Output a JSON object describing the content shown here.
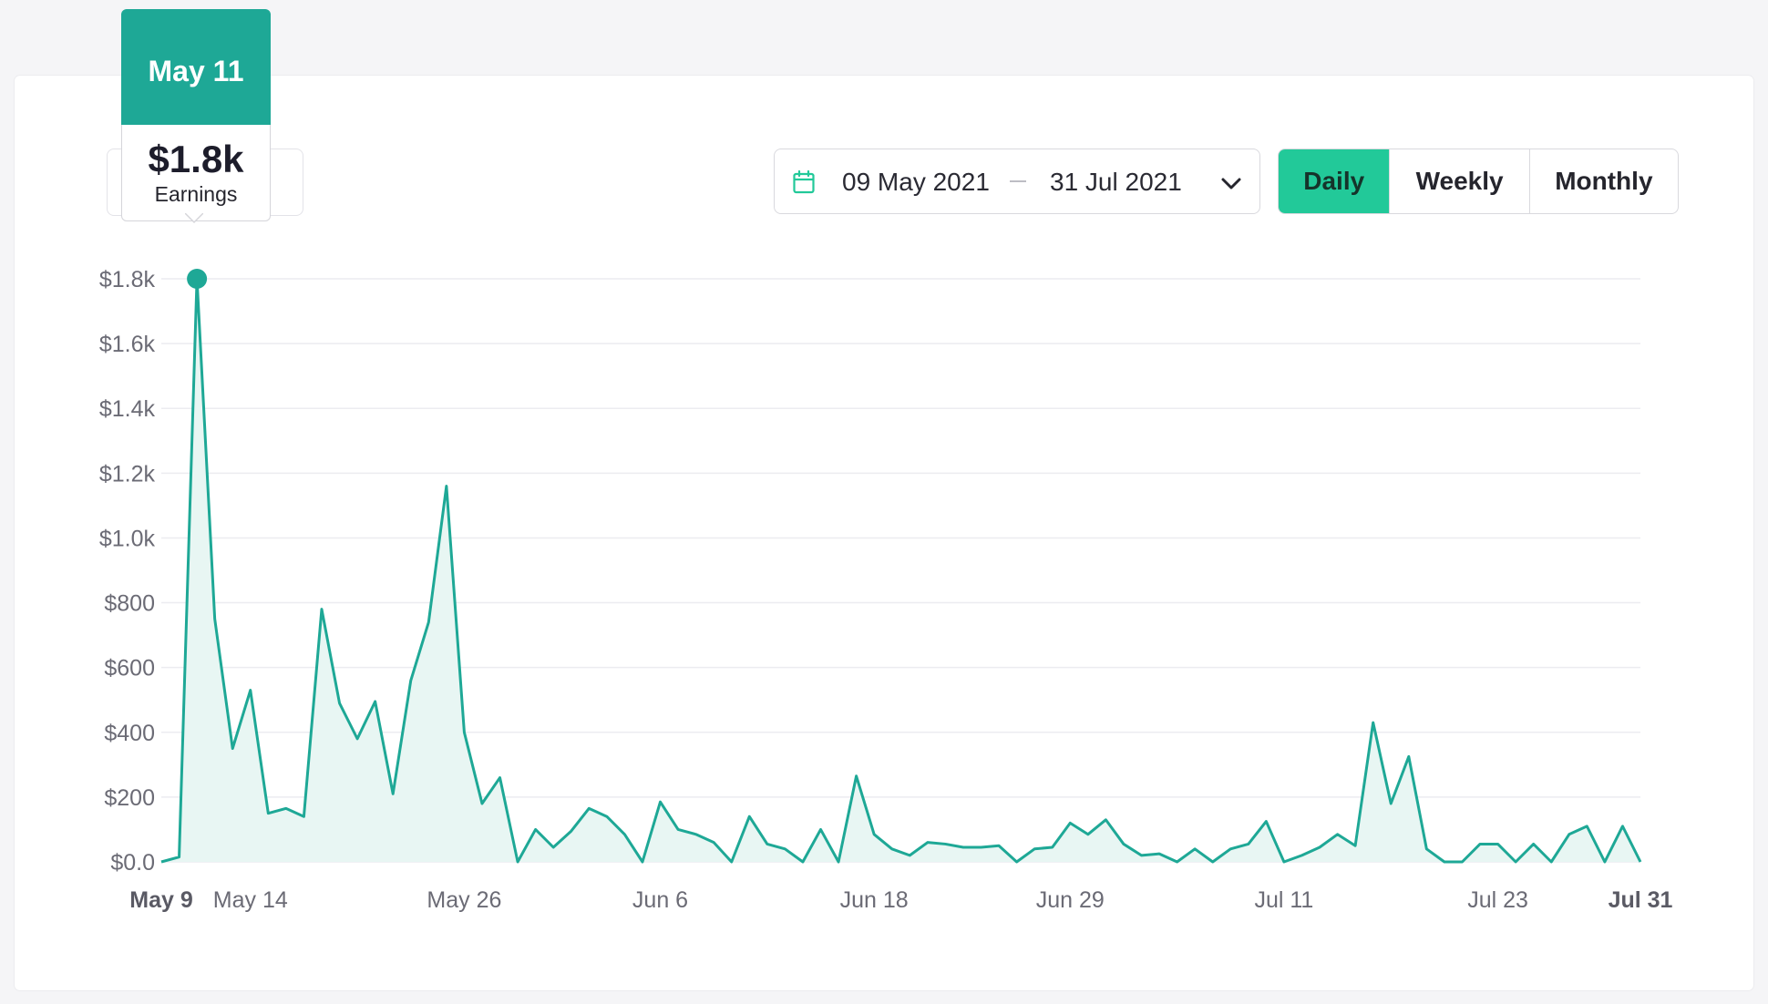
{
  "date_range": {
    "start": "09 May 2021",
    "end": "31 Jul 2021",
    "calendar_icon": "calendar-icon",
    "dropdown_icon": "chevron-down-icon"
  },
  "granularity": {
    "options": [
      "Daily",
      "Weekly",
      "Monthly"
    ],
    "selected": "Daily"
  },
  "tooltip": {
    "date": "May 11",
    "value": "$1.8k",
    "label": "Earnings"
  },
  "colors": {
    "accent": "#22c999",
    "line": "#1ea896",
    "area_fill": "#e8f6f3",
    "grid": "#ececf0",
    "tick": "#6b6b75"
  },
  "chart_data": {
    "type": "area",
    "xlabel": "",
    "ylabel": "",
    "ylim": [
      0,
      1800
    ],
    "yticks": [
      {
        "value": 0,
        "label": "$0.0"
      },
      {
        "value": 200,
        "label": "$200"
      },
      {
        "value": 400,
        "label": "$400"
      },
      {
        "value": 600,
        "label": "$600"
      },
      {
        "value": 800,
        "label": "$800"
      },
      {
        "value": 1000,
        "label": "$1.0k"
      },
      {
        "value": 1200,
        "label": "$1.2k"
      },
      {
        "value": 1400,
        "label": "$1.4k"
      },
      {
        "value": 1600,
        "label": "$1.6k"
      },
      {
        "value": 1800,
        "label": "$1.8k"
      }
    ],
    "xticks": [
      {
        "date": "2021-05-09",
        "label": "May 9",
        "bold": true
      },
      {
        "date": "2021-05-14",
        "label": "May 14",
        "bold": false
      },
      {
        "date": "2021-05-26",
        "label": "May 26",
        "bold": false
      },
      {
        "date": "2021-06-06",
        "label": "Jun 6",
        "bold": false
      },
      {
        "date": "2021-06-18",
        "label": "Jun 18",
        "bold": false
      },
      {
        "date": "2021-06-29",
        "label": "Jun 29",
        "bold": false
      },
      {
        "date": "2021-07-11",
        "label": "Jul 11",
        "bold": false
      },
      {
        "date": "2021-07-23",
        "label": "Jul 23",
        "bold": false
      },
      {
        "date": "2021-07-31",
        "label": "Jul 31",
        "bold": true
      }
    ],
    "grid": true,
    "highlight": {
      "date": "2021-05-11",
      "value": 1800
    },
    "series": [
      {
        "x_start": "2021-05-09",
        "x_end": "2021-07-31",
        "values": [
          0,
          15,
          1800,
          750,
          350,
          530,
          150,
          165,
          140,
          780,
          490,
          380,
          495,
          210,
          560,
          740,
          1160,
          400,
          180,
          260,
          0,
          100,
          45,
          95,
          165,
          140,
          85,
          0,
          185,
          100,
          85,
          60,
          0,
          140,
          55,
          40,
          0,
          100,
          0,
          265,
          85,
          40,
          20,
          60,
          55,
          45,
          45,
          50,
          0,
          40,
          45,
          120,
          85,
          130,
          55,
          20,
          25,
          0,
          40,
          0,
          40,
          55,
          125,
          0,
          20,
          45,
          85,
          50,
          430,
          180,
          325,
          40,
          0,
          0,
          55,
          55,
          0,
          55,
          0,
          85,
          110,
          0,
          110,
          0
        ]
      }
    ]
  }
}
